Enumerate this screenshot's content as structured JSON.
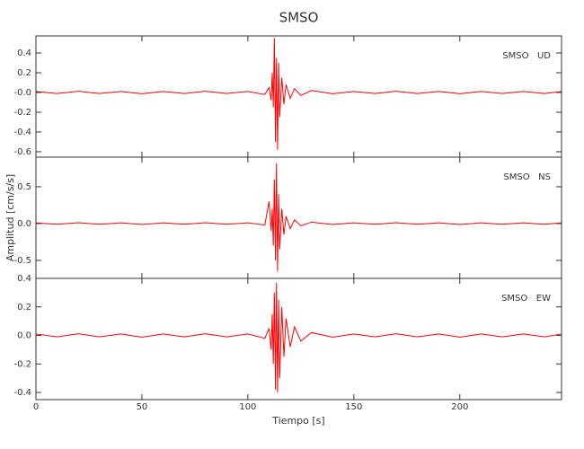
{
  "chart_data": [
    {
      "type": "line",
      "title": "SMSO",
      "annotation": "SMSO   UD",
      "x": [
        0,
        10,
        20,
        30,
        40,
        50,
        60,
        70,
        80,
        90,
        100,
        108,
        110,
        111,
        111.5,
        112,
        112.5,
        113,
        113.5,
        114,
        114.5,
        115,
        116,
        117,
        118,
        120,
        122,
        125,
        130,
        140,
        150,
        160,
        170,
        180,
        190,
        200,
        210,
        220,
        230,
        240,
        248
      ],
      "series": [
        {
          "name": "UD",
          "color": "#ff0000",
          "values": [
            0.01,
            -0.01,
            0.012,
            -0.01,
            0.01,
            -0.012,
            0.01,
            -0.01,
            0.012,
            -0.01,
            0.01,
            -0.02,
            0.05,
            -0.08,
            0.2,
            -0.15,
            0.55,
            -0.5,
            0.35,
            -0.58,
            0.3,
            -0.25,
            0.15,
            -0.12,
            0.08,
            -0.06,
            0.04,
            -0.03,
            0.02,
            -0.012,
            0.01,
            -0.01,
            0.012,
            -0.01,
            0.01,
            -0.012,
            0.01,
            -0.01,
            0.01,
            -0.01,
            0.01
          ]
        }
      ],
      "xlim": [
        0,
        248
      ],
      "ylim": [
        -0.655,
        0.573
      ],
      "yticks": [
        -0.6,
        -0.4,
        -0.2,
        {
          "value": 0,
          "label": "-0.0"
        },
        0.2,
        0.4
      ]
    },
    {
      "type": "line",
      "annotation": "SMSO   NS",
      "y_label": "Amplitud [cm/s/s]",
      "x": [
        0,
        10,
        20,
        30,
        40,
        50,
        60,
        70,
        80,
        90,
        100,
        108,
        110,
        111,
        111.5,
        112,
        112.5,
        113,
        113.5,
        114,
        114.5,
        115,
        116,
        117,
        118,
        120,
        122,
        125,
        130,
        140,
        150,
        160,
        170,
        180,
        190,
        200,
        210,
        220,
        230,
        240,
        248
      ],
      "series": [
        {
          "name": "NS",
          "color": "#ff0000",
          "values": [
            0.01,
            -0.01,
            0.012,
            -0.01,
            0.01,
            -0.012,
            0.01,
            -0.01,
            0.012,
            -0.01,
            0.01,
            -0.02,
            0.3,
            -0.1,
            0.2,
            -0.3,
            0.6,
            -0.5,
            0.82,
            -0.65,
            0.4,
            -0.35,
            0.2,
            -0.15,
            0.1,
            -0.07,
            0.05,
            -0.03,
            0.02,
            -0.012,
            0.01,
            -0.01,
            0.012,
            -0.01,
            0.01,
            -0.012,
            0.01,
            -0.01,
            0.01,
            -0.01,
            0.01
          ]
        }
      ],
      "xlim": [
        0,
        248
      ],
      "ylim": [
        -0.744,
        0.902
      ],
      "yticks": [
        -0.5,
        {
          "value": 0,
          "label": "0.0"
        },
        0.5
      ]
    },
    {
      "type": "line",
      "annotation": "SMSO   EW",
      "x_label": "Tiempo [s]",
      "x": [
        0,
        10,
        20,
        30,
        40,
        50,
        60,
        70,
        80,
        90,
        100,
        108,
        110,
        111,
        111.5,
        112,
        112.5,
        113,
        113.5,
        114,
        114.5,
        115,
        116,
        117,
        118,
        120,
        122,
        125,
        130,
        140,
        150,
        160,
        170,
        180,
        190,
        200,
        210,
        220,
        230,
        240,
        248
      ],
      "series": [
        {
          "name": "EW",
          "color": "#ff0000",
          "values": [
            0.01,
            -0.01,
            0.012,
            -0.01,
            0.01,
            -0.012,
            0.01,
            -0.01,
            0.012,
            -0.01,
            0.01,
            -0.02,
            0.05,
            -0.1,
            0.15,
            -0.2,
            0.3,
            -0.38,
            0.37,
            -0.4,
            0.25,
            -0.3,
            0.2,
            -0.15,
            0.12,
            -0.08,
            0.06,
            -0.04,
            0.02,
            -0.012,
            0.01,
            -0.01,
            0.012,
            -0.01,
            0.01,
            -0.012,
            0.01,
            -0.01,
            0.01,
            -0.01,
            0.01
          ]
        }
      ],
      "xlim": [
        0,
        248
      ],
      "ylim": [
        -0.45,
        0.4
      ],
      "yticks": [
        -0.4,
        -0.2,
        {
          "value": 0,
          "label": "0.0"
        },
        0.2,
        0.4
      ],
      "xticks": [
        0,
        50,
        100,
        150,
        200
      ]
    }
  ]
}
